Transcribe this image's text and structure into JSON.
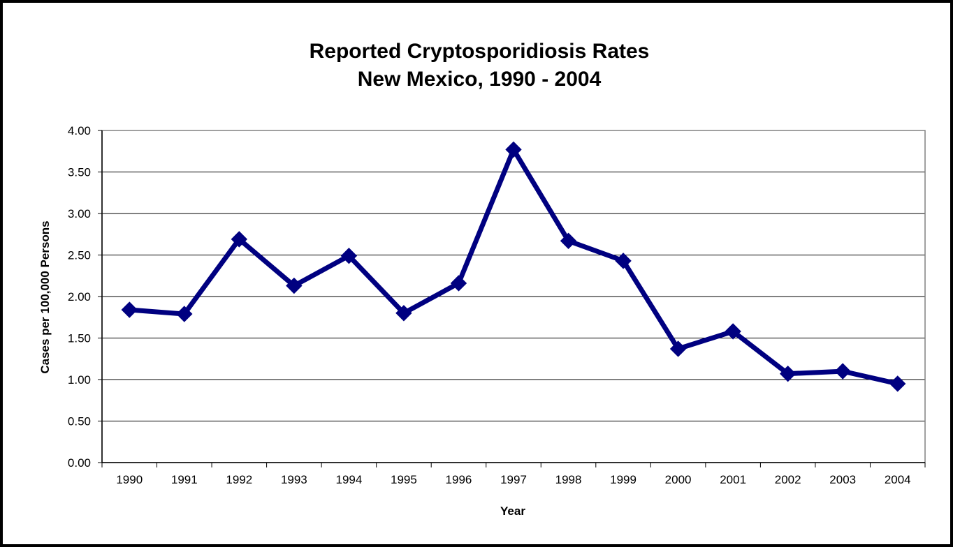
{
  "chart_data": {
    "type": "line",
    "title": "Reported Cryptosporidiosis Rates",
    "subtitle": "New Mexico, 1990 - 2004",
    "xlabel": "Year",
    "ylabel": "Cases per 100,000 Persons",
    "categories": [
      "1990",
      "1991",
      "1992",
      "1993",
      "1994",
      "1995",
      "1996",
      "1997",
      "1998",
      "1999",
      "2000",
      "2001",
      "2002",
      "2003",
      "2004"
    ],
    "series": [
      {
        "values": [
          1.84,
          1.79,
          2.69,
          2.13,
          2.49,
          1.8,
          2.16,
          3.77,
          2.67,
          2.43,
          1.37,
          1.58,
          1.07,
          1.1,
          0.95
        ],
        "color": "#000080"
      }
    ],
    "ylim": [
      0,
      4
    ],
    "yticks": [
      "0.00",
      "0.50",
      "1.00",
      "1.50",
      "2.00",
      "2.50",
      "3.00",
      "3.50",
      "4.00"
    ],
    "grid": true,
    "legend": "none"
  }
}
